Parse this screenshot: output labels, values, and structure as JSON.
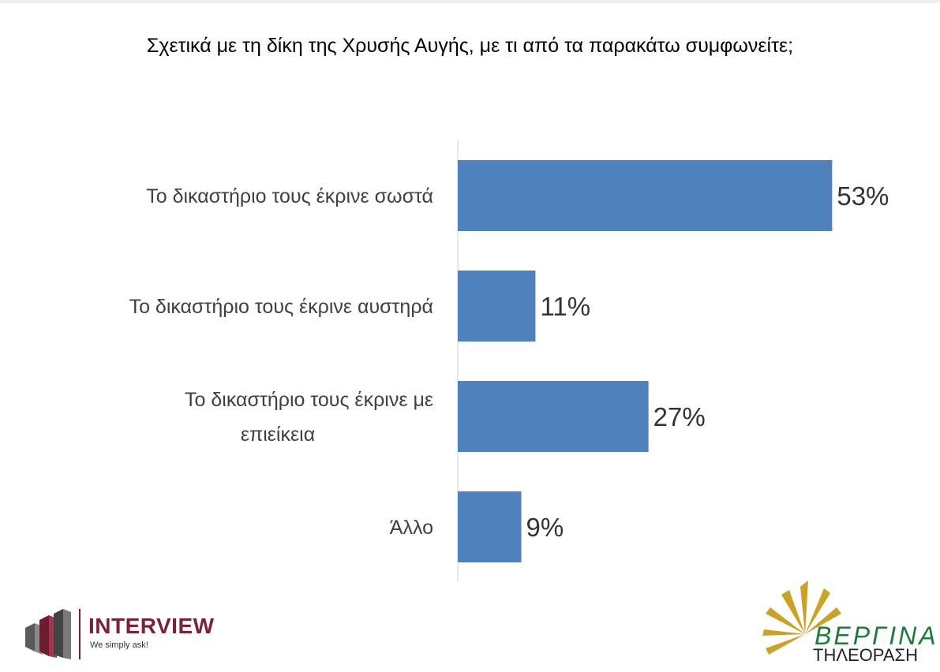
{
  "title": "Σχετικά με τη δίκη της Χρυσής Αυγής, με τι από τα παρακάτω συμφωνείτε;",
  "chart_data": {
    "type": "bar",
    "orientation": "horizontal",
    "categories": [
      [
        "Το δικαστήριο τους έκρινε σωστά"
      ],
      [
        "Το δικαστήριο τους έκρινε αυστηρά"
      ],
      [
        "Το δικαστήριο τους έκρινε με",
        "επιείκεια"
      ],
      [
        "Άλλο"
      ]
    ],
    "values": [
      53,
      11,
      27,
      9
    ],
    "value_labels": [
      "53%",
      "11%",
      "27%",
      "9%"
    ],
    "unit": "%",
    "bar_color": "#4f81bd",
    "grid": false,
    "legend": "none"
  },
  "logos": {
    "interview": {
      "name": "INTERVIEW",
      "tagline": "We simply ask!",
      "color": "#7b2336"
    },
    "vergina": {
      "name": "ΒΕΡΓΙΝΑ",
      "sub": "ΤΗΛΕΟΡΑΣΗ",
      "color": "#1f7a3a",
      "ray_color": "#c9a227"
    }
  }
}
